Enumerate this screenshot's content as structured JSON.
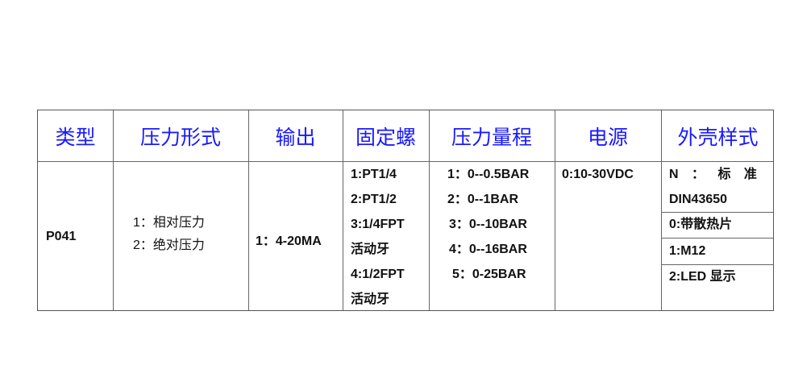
{
  "headers": [
    "类型",
    "压力形式",
    "输出",
    "固定螺",
    "压力量程",
    "电源",
    "外壳样式"
  ],
  "row": {
    "type": "P041",
    "pressure_form": [
      "1：相对压力",
      "2：绝对压力"
    ],
    "output": "1：4-20MA",
    "thread": [
      "1:PT1/4",
      "2:PT1/2",
      "3:1/4FPT",
      "活动牙",
      "4:1/2FPT",
      "活动牙"
    ],
    "range": [
      "1：0--0.5BAR",
      "2：0--1BAR",
      "3：0--10BAR",
      "4：0--16BAR",
      "5：0-25BAR"
    ],
    "power": "0:10-30VDC",
    "housing": [
      "N ： 标 准",
      "DIN43650",
      "0:带散热片",
      "1:M12",
      "2:LED 显示"
    ]
  },
  "colors": {
    "header_text": "#1a1aff",
    "body_text": "#111111",
    "border": "#666666"
  }
}
